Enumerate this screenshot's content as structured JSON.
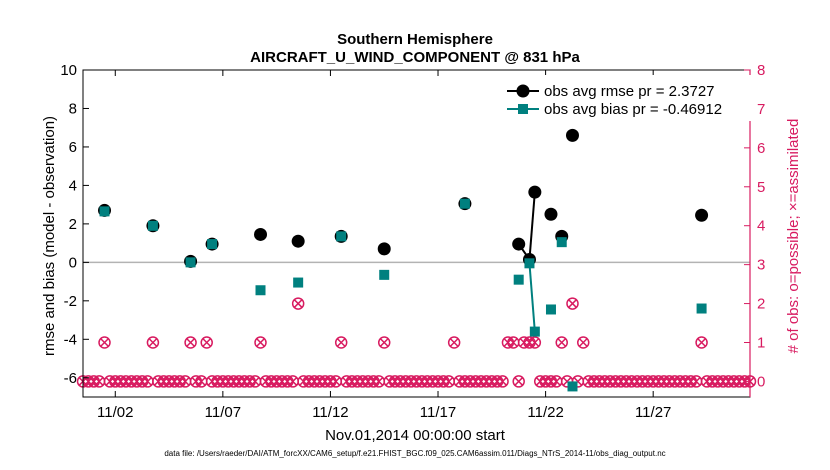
{
  "chart_data": {
    "type": "scatter",
    "title": [
      "Southern Hemisphere",
      "AIRCRAFT_U_WIND_COMPONENT @ 831 hPa"
    ],
    "xlabel": "Nov.01,2014 00:00:00 start",
    "ylabel": "rmse and bias (model - observation)",
    "ylabel_right": "# of obs: o=possible; ×=assimilated",
    "footnote": "data file: /Users/raeder/DAI/ATM_forcXX/CAM6_setup/f.e21.FHIST_BGC.f09_025.CAM6assim.011/Diags_NTrS_2014-11/obs_diag_output.nc",
    "xlim": [
      0.5,
      31.5
    ],
    "ylim": [
      -7,
      10
    ],
    "ylim_right": [
      -0.4,
      8
    ],
    "x_ticks": [
      {
        "v": 2,
        "label": "11/02"
      },
      {
        "v": 7,
        "label": "11/07"
      },
      {
        "v": 12,
        "label": "11/12"
      },
      {
        "v": 17,
        "label": "11/17"
      },
      {
        "v": 22,
        "label": "11/22"
      },
      {
        "v": 27,
        "label": "11/27"
      }
    ],
    "y_ticks": [
      {
        "v": 10,
        "label": "10"
      },
      {
        "v": 8,
        "label": "8"
      },
      {
        "v": 6,
        "label": "6"
      },
      {
        "v": 4,
        "label": "4"
      },
      {
        "v": 2,
        "label": "2"
      },
      {
        "v": 0,
        "label": "0"
      },
      {
        "v": -2,
        "label": "-2"
      },
      {
        "v": -4,
        "label": "-4"
      },
      {
        "v": -6,
        "label": "-6"
      }
    ],
    "y_ticks_right": [
      {
        "v": 8,
        "label": "8"
      },
      {
        "v": 7,
        "label": "7"
      },
      {
        "v": 6,
        "label": "6"
      },
      {
        "v": 5,
        "label": "5"
      },
      {
        "v": 4,
        "label": "4"
      },
      {
        "v": 3,
        "label": "3"
      },
      {
        "v": 2,
        "label": "2"
      },
      {
        "v": 1,
        "label": "1"
      },
      {
        "v": 0,
        "label": "0"
      }
    ],
    "zero_line": 0,
    "series": [
      {
        "name": "obs avg rmse pr = 2.3727",
        "color": "#000000",
        "marker": "circle",
        "x": [
          1.5,
          3.75,
          5.5,
          6.5,
          8.75,
          10.5,
          12.5,
          14.5,
          18.25,
          20.75,
          21.25,
          21.5,
          22.25,
          22.75,
          23.25,
          29.25
        ],
        "y": [
          2.7,
          1.9,
          0.05,
          0.95,
          1.45,
          1.1,
          1.35,
          0.7,
          3.05,
          0.95,
          0.15,
          3.65,
          2.5,
          1.35,
          6.6,
          2.45
        ],
        "connect": [
          [
            20.75,
            21.25
          ],
          [
            21.25,
            21.5
          ]
        ]
      },
      {
        "name": "obs avg bias pr = -0.46912",
        "color": "#00807f",
        "marker": "square",
        "x": [
          1.5,
          3.75,
          5.5,
          6.5,
          8.75,
          10.5,
          12.5,
          14.5,
          18.25,
          20.75,
          21.25,
          21.5,
          22.25,
          22.75,
          23.25,
          29.25
        ],
        "y": [
          2.65,
          1.9,
          0.0,
          0.95,
          -1.45,
          -1.05,
          1.35,
          -0.65,
          3.05,
          -0.9,
          -0.05,
          -3.6,
          -2.45,
          1.05,
          -6.45,
          -2.4
        ],
        "connect": [
          [
            21.25,
            21.5
          ]
        ]
      }
    ],
    "obs_counts": {
      "color": "#d81b60",
      "axis": "right",
      "nonzero": [
        {
          "x": 1.5,
          "possible": 1,
          "assimilated": 1
        },
        {
          "x": 3.75,
          "possible": 1,
          "assimilated": 1
        },
        {
          "x": 5.5,
          "possible": 1,
          "assimilated": 1
        },
        {
          "x": 6.25,
          "possible": 1,
          "assimilated": 1
        },
        {
          "x": 8.75,
          "possible": 1,
          "assimilated": 1
        },
        {
          "x": 10.5,
          "possible": 2,
          "assimilated": 2
        },
        {
          "x": 12.5,
          "possible": 1,
          "assimilated": 1
        },
        {
          "x": 14.5,
          "possible": 1,
          "assimilated": 1
        },
        {
          "x": 17.75,
          "possible": 1,
          "assimilated": 1
        },
        {
          "x": 20.25,
          "possible": 1,
          "assimilated": 1
        },
        {
          "x": 20.5,
          "possible": 1,
          "assimilated": 1
        },
        {
          "x": 21.0,
          "possible": 1,
          "assimilated": 1
        },
        {
          "x": 21.25,
          "possible": 1,
          "assimilated": 1
        },
        {
          "x": 21.5,
          "possible": 1,
          "assimilated": 1
        },
        {
          "x": 22.75,
          "possible": 1,
          "assimilated": 1
        },
        {
          "x": 23.25,
          "possible": 2,
          "assimilated": 2
        },
        {
          "x": 23.75,
          "possible": 1,
          "assimilated": 1
        },
        {
          "x": 29.25,
          "possible": 1,
          "assimilated": 1
        }
      ],
      "zero_x_start": 0.5,
      "zero_x_end": 31.5,
      "zero_x_step": 0.25
    }
  }
}
